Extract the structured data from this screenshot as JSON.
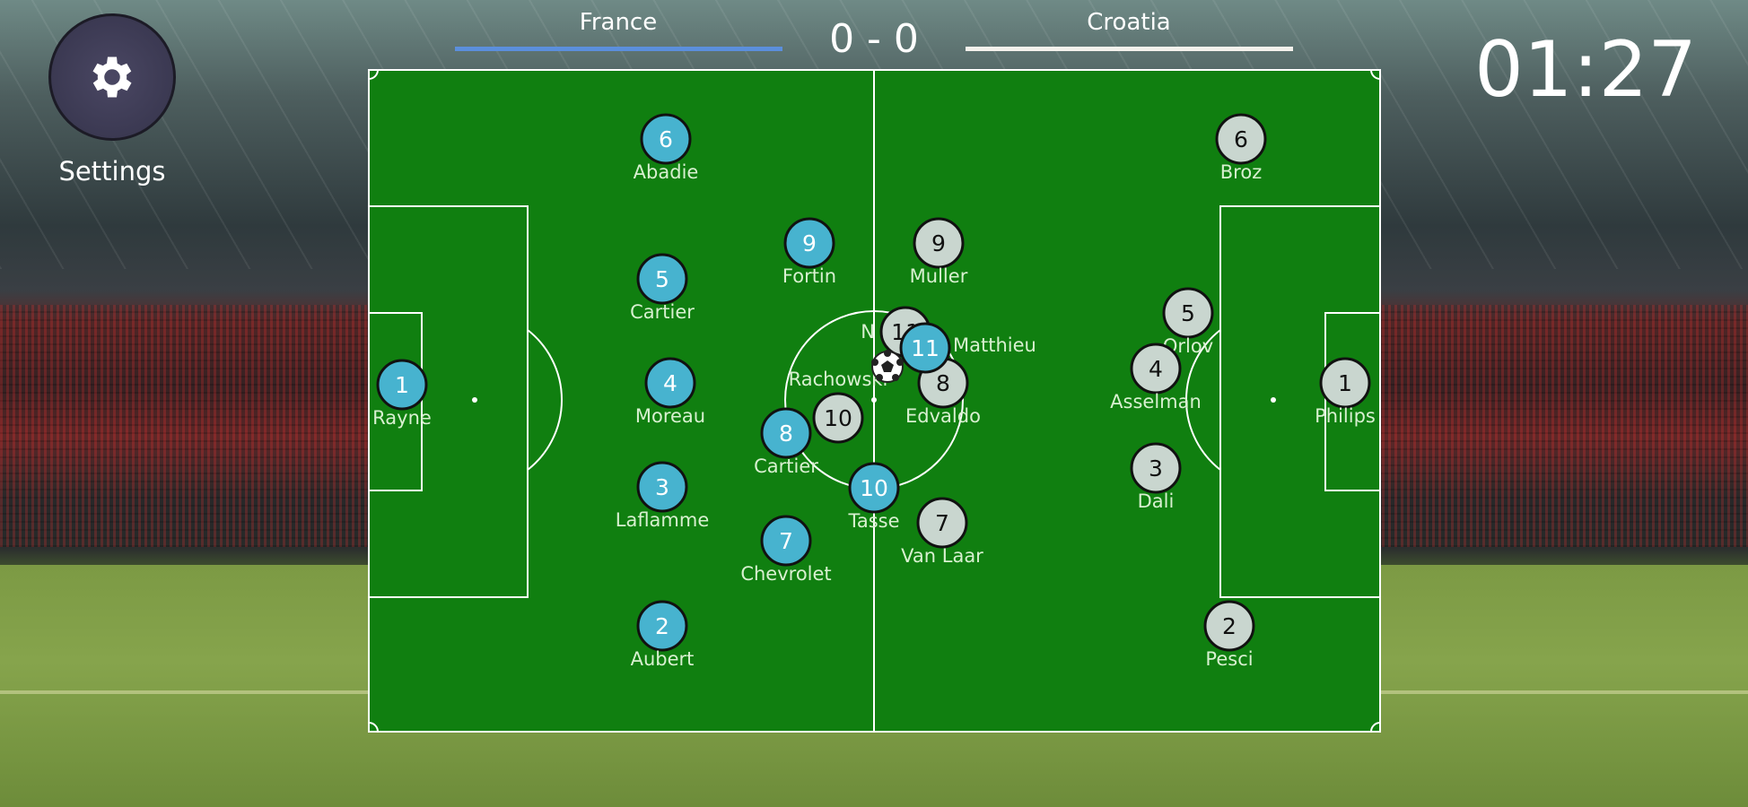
{
  "header": {
    "home_team": "France",
    "away_team": "Croatia",
    "score": "0 - 0",
    "timer": "01:27",
    "home_color": "#5b8fdc",
    "away_color": "#f4f1ec"
  },
  "settings": {
    "label": "Settings",
    "icon": "gear-icon"
  },
  "colors": {
    "pitch": "#107f10",
    "home_player": "#47b3cf",
    "away_player": "#c9d6cf"
  },
  "players": {
    "home": [
      {
        "number": "6",
        "name": "Abadie"
      },
      {
        "number": "9",
        "name": "Fortin"
      },
      {
        "number": "5",
        "name": "Cartier"
      },
      {
        "number": "1",
        "name": "Rayne"
      },
      {
        "number": "4",
        "name": "Moreau"
      },
      {
        "number": "8",
        "name": "Cartier"
      },
      {
        "number": "3",
        "name": "Laflamme"
      },
      {
        "number": "10",
        "name": "Tasse"
      },
      {
        "number": "7",
        "name": "Chevrolet"
      },
      {
        "number": "2",
        "name": "Aubert"
      },
      {
        "number": "11",
        "name": "Matthieu"
      }
    ],
    "away": [
      {
        "number": "6",
        "name": "Broz"
      },
      {
        "number": "9",
        "name": "Muller"
      },
      {
        "number": "11",
        "name": "N"
      },
      {
        "number": "8",
        "name": "Edvaldo"
      },
      {
        "number": "10",
        "name": "Rachowski"
      },
      {
        "number": "5",
        "name": "Orlov"
      },
      {
        "number": "4",
        "name": "Asselman"
      },
      {
        "number": "1",
        "name": "Philips"
      },
      {
        "number": "3",
        "name": "Dali"
      },
      {
        "number": "7",
        "name": "Van Laar"
      },
      {
        "number": "2",
        "name": "Pesci"
      }
    ]
  }
}
